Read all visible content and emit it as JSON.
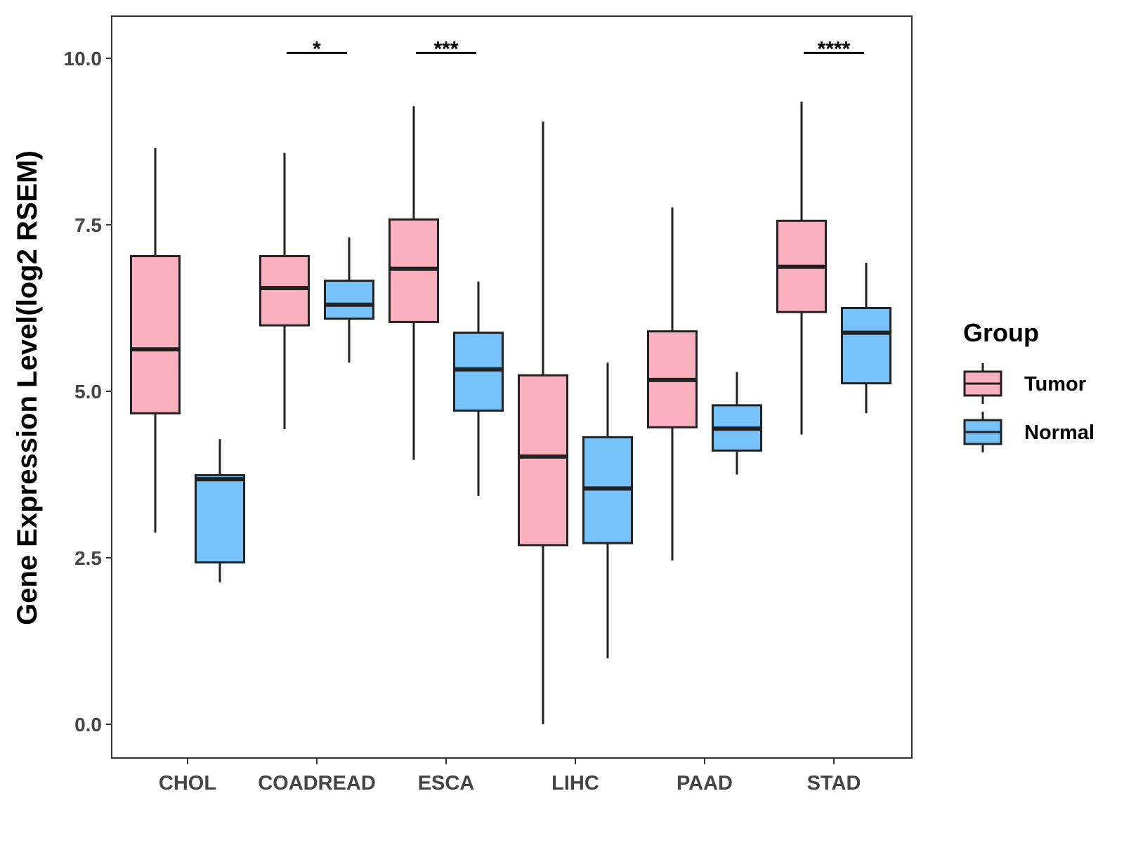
{
  "chart_data": {
    "type": "boxplot",
    "title": "",
    "xlabel": "",
    "ylabel": "Gene Expression Level(log2 RSEM)",
    "ylim": [
      -0.5,
      10.6
    ],
    "yticks": [
      0.0,
      2.5,
      5.0,
      7.5,
      10.0
    ],
    "ytick_labels": [
      "0.0",
      "2.5",
      "5.0",
      "7.5",
      "10.0"
    ],
    "categories": [
      "CHOL",
      "COADREAD",
      "ESCA",
      "LIHC",
      "PAAD",
      "STAD"
    ],
    "legend": {
      "title": "Group",
      "position": "right",
      "entries": [
        {
          "name": "Tumor",
          "color": "#FBB0C0"
        },
        {
          "name": "Normal",
          "color": "#76C2F8"
        }
      ]
    },
    "series": [
      {
        "name": "Tumor",
        "color": "#FBB0C0",
        "boxes": [
          {
            "category": "CHOL",
            "min": 2.88,
            "q1": 4.67,
            "median": 5.63,
            "q3": 7.03,
            "max": 8.65
          },
          {
            "category": "COADREAD",
            "min": 4.43,
            "q1": 5.99,
            "median": 6.55,
            "q3": 7.03,
            "max": 8.58
          },
          {
            "category": "ESCA",
            "min": 3.97,
            "q1": 6.04,
            "median": 6.84,
            "q3": 7.58,
            "max": 9.28
          },
          {
            "category": "LIHC",
            "min": 0.0,
            "q1": 2.69,
            "median": 4.02,
            "q3": 5.24,
            "max": 9.05
          },
          {
            "category": "PAAD",
            "min": 2.46,
            "q1": 4.46,
            "median": 5.17,
            "q3": 5.9,
            "max": 7.76
          },
          {
            "category": "STAD",
            "min": 4.35,
            "q1": 6.19,
            "median": 6.87,
            "q3": 7.56,
            "max": 9.35
          }
        ]
      },
      {
        "name": "Normal",
        "color": "#76C2F8",
        "boxes": [
          {
            "category": "CHOL",
            "min": 2.13,
            "q1": 2.43,
            "median": 3.68,
            "q3": 3.74,
            "max": 4.28
          },
          {
            "category": "COADREAD",
            "min": 5.43,
            "q1": 6.09,
            "median": 6.3,
            "q3": 6.66,
            "max": 7.31
          },
          {
            "category": "ESCA",
            "min": 3.43,
            "q1": 4.71,
            "median": 5.33,
            "q3": 5.88,
            "max": 6.65
          },
          {
            "category": "LIHC",
            "min": 0.99,
            "q1": 2.72,
            "median": 3.54,
            "q3": 4.31,
            "max": 5.43
          },
          {
            "category": "PAAD",
            "min": 3.75,
            "q1": 4.11,
            "median": 4.44,
            "q3": 4.79,
            "max": 5.29
          },
          {
            "category": "STAD",
            "min": 4.67,
            "q1": 5.12,
            "median": 5.88,
            "q3": 6.25,
            "max": 6.93
          }
        ]
      }
    ],
    "annotations": [
      {
        "category": "COADREAD",
        "label": "*",
        "y": 10.08
      },
      {
        "category": "ESCA",
        "label": "***",
        "y": 10.08
      },
      {
        "category": "STAD",
        "label": "****",
        "y": 10.08
      }
    ]
  }
}
